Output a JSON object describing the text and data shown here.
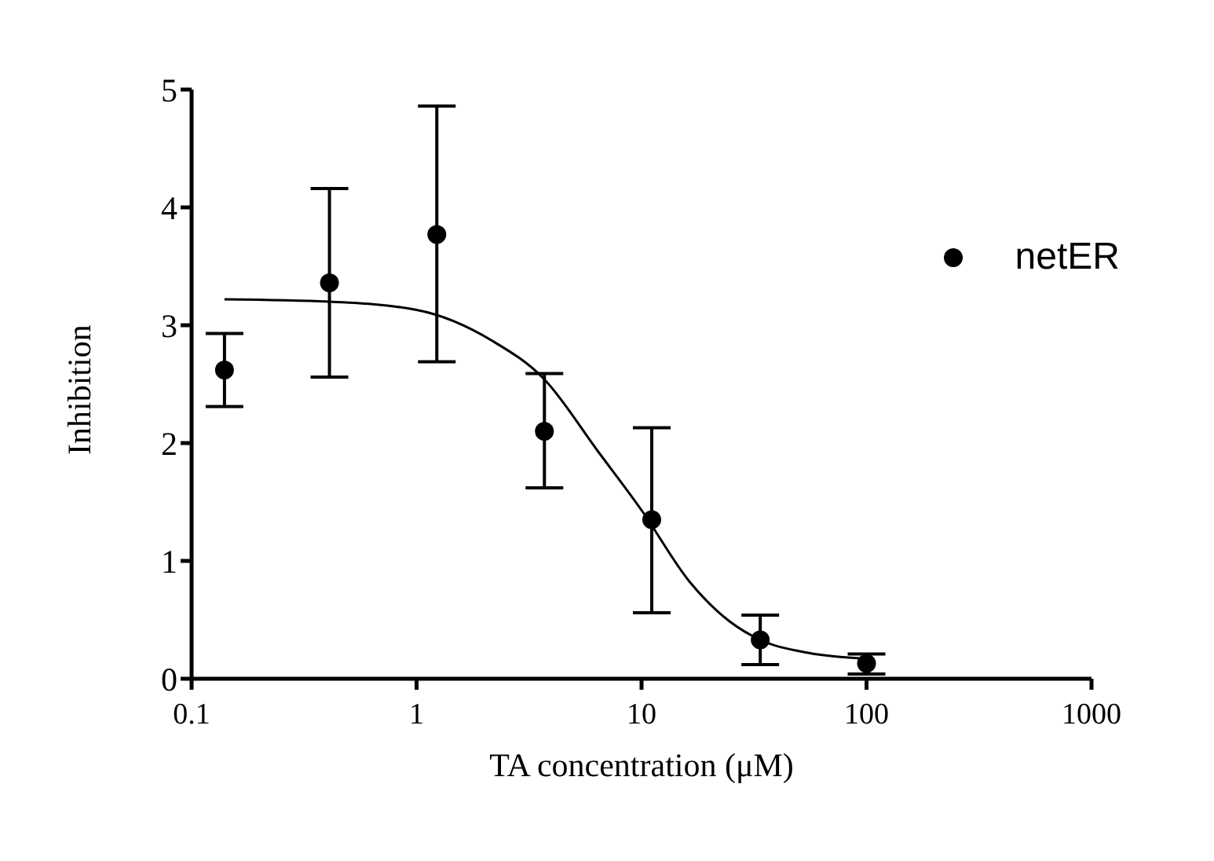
{
  "chart_data": {
    "type": "scatter",
    "xlabel": "TA concentration (μM)",
    "ylabel": "Inhibition",
    "log": "x",
    "xlim": [
      0.1,
      1000
    ],
    "xticks": [
      0.1,
      1,
      10,
      100,
      1000
    ],
    "ylim": [
      0,
      5
    ],
    "yticks": [
      0,
      1,
      2,
      3,
      4,
      5
    ],
    "grid": false,
    "legend": "top right",
    "marker": "circle",
    "series": [
      {
        "name": "netER",
        "color": "#000000",
        "x": [
          0.14,
          0.41,
          1.23,
          3.7,
          11.1,
          33.7,
          100
        ],
        "values": [
          2.62,
          3.36,
          3.77,
          2.1,
          1.35,
          0.33,
          0.13
        ],
        "errors": [
          [
            2.31,
            2.93
          ],
          [
            2.56,
            4.16
          ],
          [
            2.69,
            4.86
          ],
          [
            1.62,
            2.59
          ],
          [
            0.56,
            2.13
          ],
          [
            0.12,
            0.54
          ],
          [
            0.04,
            0.21
          ]
        ]
      },
      {
        "type": "line",
        "color": "#000000",
        "marker": "none",
        "x": [
          0.14,
          0.41,
          1,
          2.16,
          3.7,
          6.4,
          10,
          16.4,
          24.5,
          33.7,
          55,
          100
        ],
        "values": [
          3.22,
          3.2,
          3.13,
          2.87,
          2.54,
          1.93,
          1.43,
          0.82,
          0.49,
          0.33,
          0.22,
          0.17
        ]
      }
    ]
  }
}
